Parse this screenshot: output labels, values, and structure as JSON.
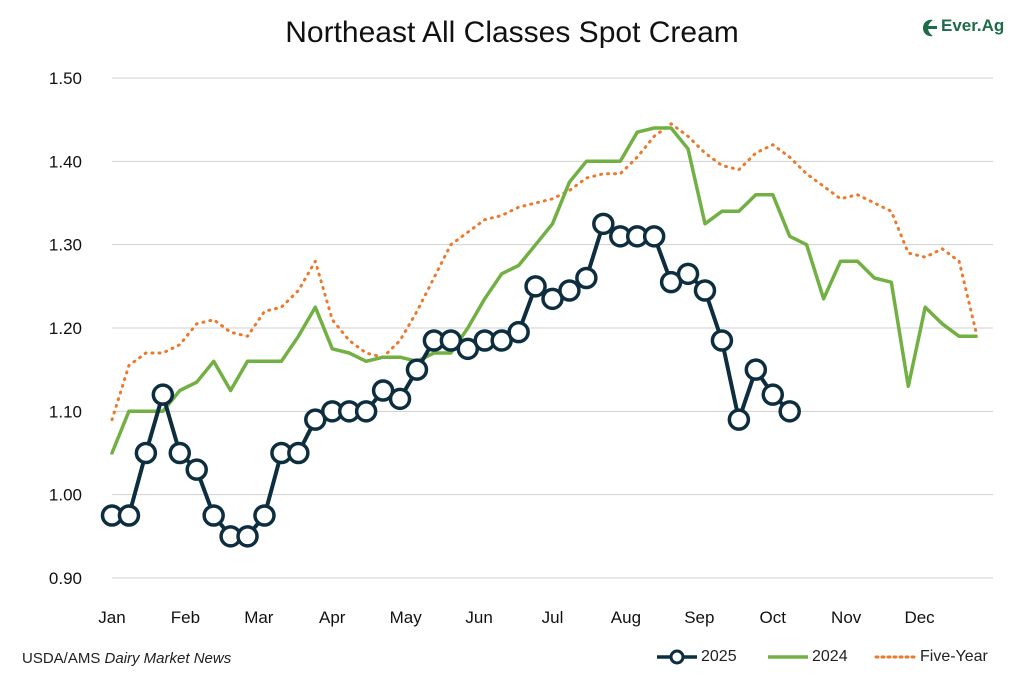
{
  "chart_data": {
    "type": "line",
    "title": "Northeast All Classes Spot Cream",
    "xlabel": "",
    "ylabel": "",
    "ylim": [
      0.9,
      1.5
    ],
    "yticks": [
      "1.50",
      "1.40",
      "1.30",
      "1.20",
      "1.10",
      "1.00",
      "0.90"
    ],
    "ytick_values": [
      1.5,
      1.4,
      1.3,
      1.2,
      1.1,
      1.0,
      0.9
    ],
    "months": [
      "Jan",
      "Feb",
      "Mar",
      "Apr",
      "May",
      "Jun",
      "Jul",
      "Aug",
      "Sep",
      "Oct",
      "Nov",
      "Dec"
    ],
    "xlim": [
      0,
      52
    ],
    "grid": "horizontal",
    "legend_position": "bottom-right",
    "series": [
      {
        "name": "2025",
        "style": "line-with-open-circles",
        "color": "#0d2e3f",
        "points": [
          [
            0,
            0.975
          ],
          [
            1,
            0.975
          ],
          [
            2,
            1.05
          ],
          [
            3,
            1.12
          ],
          [
            4,
            1.05
          ],
          [
            5,
            1.03
          ],
          [
            6,
            0.975
          ],
          [
            7,
            0.95
          ],
          [
            8,
            0.95
          ],
          [
            9,
            0.975
          ],
          [
            10,
            1.05
          ],
          [
            11,
            1.05
          ],
          [
            12,
            1.09
          ],
          [
            13,
            1.1
          ],
          [
            14,
            1.1
          ],
          [
            15,
            1.1
          ],
          [
            16,
            1.125
          ],
          [
            17,
            1.115
          ],
          [
            18,
            1.15
          ],
          [
            19,
            1.185
          ],
          [
            20,
            1.185
          ],
          [
            21,
            1.175
          ],
          [
            22,
            1.185
          ],
          [
            23,
            1.185
          ],
          [
            24,
            1.195
          ],
          [
            25,
            1.25
          ],
          [
            26,
            1.235
          ],
          [
            27,
            1.245
          ],
          [
            28,
            1.26
          ],
          [
            29,
            1.325
          ],
          [
            30,
            1.31
          ],
          [
            31,
            1.31
          ],
          [
            32,
            1.31
          ],
          [
            33,
            1.255
          ],
          [
            34,
            1.265
          ],
          [
            35,
            1.245
          ],
          [
            36,
            1.185
          ],
          [
            37,
            1.09
          ],
          [
            38,
            1.15
          ],
          [
            39,
            1.12
          ],
          [
            40,
            1.1
          ]
        ]
      },
      {
        "name": "2024",
        "style": "solid",
        "color": "#72b043",
        "points": [
          [
            0,
            1.05
          ],
          [
            1,
            1.1
          ],
          [
            2,
            1.1
          ],
          [
            3,
            1.1
          ],
          [
            4,
            1.125
          ],
          [
            5,
            1.135
          ],
          [
            6,
            1.16
          ],
          [
            7,
            1.125
          ],
          [
            8,
            1.16
          ],
          [
            9,
            1.16
          ],
          [
            10,
            1.16
          ],
          [
            11,
            1.19
          ],
          [
            12,
            1.225
          ],
          [
            13,
            1.175
          ],
          [
            14,
            1.17
          ],
          [
            15,
            1.16
          ],
          [
            16,
            1.165
          ],
          [
            17,
            1.165
          ],
          [
            18,
            1.16
          ],
          [
            19,
            1.17
          ],
          [
            20,
            1.17
          ],
          [
            21,
            1.2
          ],
          [
            22,
            1.235
          ],
          [
            23,
            1.265
          ],
          [
            24,
            1.275
          ],
          [
            25,
            1.3
          ],
          [
            26,
            1.325
          ],
          [
            27,
            1.375
          ],
          [
            28,
            1.4
          ],
          [
            29,
            1.4
          ],
          [
            30,
            1.4
          ],
          [
            31,
            1.435
          ],
          [
            32,
            1.44
          ],
          [
            33,
            1.44
          ],
          [
            34,
            1.415
          ],
          [
            35,
            1.325
          ],
          [
            36,
            1.34
          ],
          [
            37,
            1.34
          ],
          [
            38,
            1.36
          ],
          [
            39,
            1.36
          ],
          [
            40,
            1.31
          ],
          [
            41,
            1.3
          ],
          [
            42,
            1.235
          ],
          [
            43,
            1.28
          ],
          [
            44,
            1.28
          ],
          [
            45,
            1.26
          ],
          [
            46,
            1.255
          ],
          [
            47,
            1.13
          ],
          [
            48,
            1.225
          ],
          [
            49,
            1.205
          ],
          [
            50,
            1.19
          ],
          [
            51,
            1.19
          ]
        ]
      },
      {
        "name": "Five-Year",
        "style": "dotted",
        "color": "#ea7a2e",
        "points": [
          [
            0,
            1.09
          ],
          [
            1,
            1.155
          ],
          [
            2,
            1.17
          ],
          [
            3,
            1.17
          ],
          [
            4,
            1.18
          ],
          [
            5,
            1.205
          ],
          [
            6,
            1.21
          ],
          [
            7,
            1.195
          ],
          [
            8,
            1.19
          ],
          [
            9,
            1.22
          ],
          [
            10,
            1.225
          ],
          [
            11,
            1.245
          ],
          [
            12,
            1.28
          ],
          [
            13,
            1.21
          ],
          [
            14,
            1.185
          ],
          [
            15,
            1.17
          ],
          [
            16,
            1.165
          ],
          [
            17,
            1.185
          ],
          [
            18,
            1.22
          ],
          [
            19,
            1.26
          ],
          [
            20,
            1.3
          ],
          [
            21,
            1.315
          ],
          [
            22,
            1.33
          ],
          [
            23,
            1.335
          ],
          [
            24,
            1.345
          ],
          [
            25,
            1.35
          ],
          [
            26,
            1.355
          ],
          [
            27,
            1.365
          ],
          [
            28,
            1.38
          ],
          [
            29,
            1.385
          ],
          [
            30,
            1.385
          ],
          [
            31,
            1.405
          ],
          [
            32,
            1.43
          ],
          [
            33,
            1.445
          ],
          [
            34,
            1.43
          ],
          [
            35,
            1.41
          ],
          [
            36,
            1.395
          ],
          [
            37,
            1.39
          ],
          [
            38,
            1.41
          ],
          [
            39,
            1.42
          ],
          [
            40,
            1.405
          ],
          [
            41,
            1.385
          ],
          [
            42,
            1.37
          ],
          [
            43,
            1.355
          ],
          [
            44,
            1.36
          ],
          [
            45,
            1.35
          ],
          [
            46,
            1.34
          ],
          [
            47,
            1.29
          ],
          [
            48,
            1.285
          ],
          [
            49,
            1.295
          ],
          [
            50,
            1.28
          ],
          [
            51,
            1.195
          ]
        ]
      }
    ]
  },
  "logo": {
    "text": "Ever.Ag",
    "icon": "ever-ag-logo-icon",
    "color": "#1f6b4a"
  },
  "source": {
    "prefix": "USDA/AMS ",
    "italic": "Dairy Market News"
  },
  "colors": {
    "grid": "#d0d0d0",
    "text": "#111111"
  }
}
